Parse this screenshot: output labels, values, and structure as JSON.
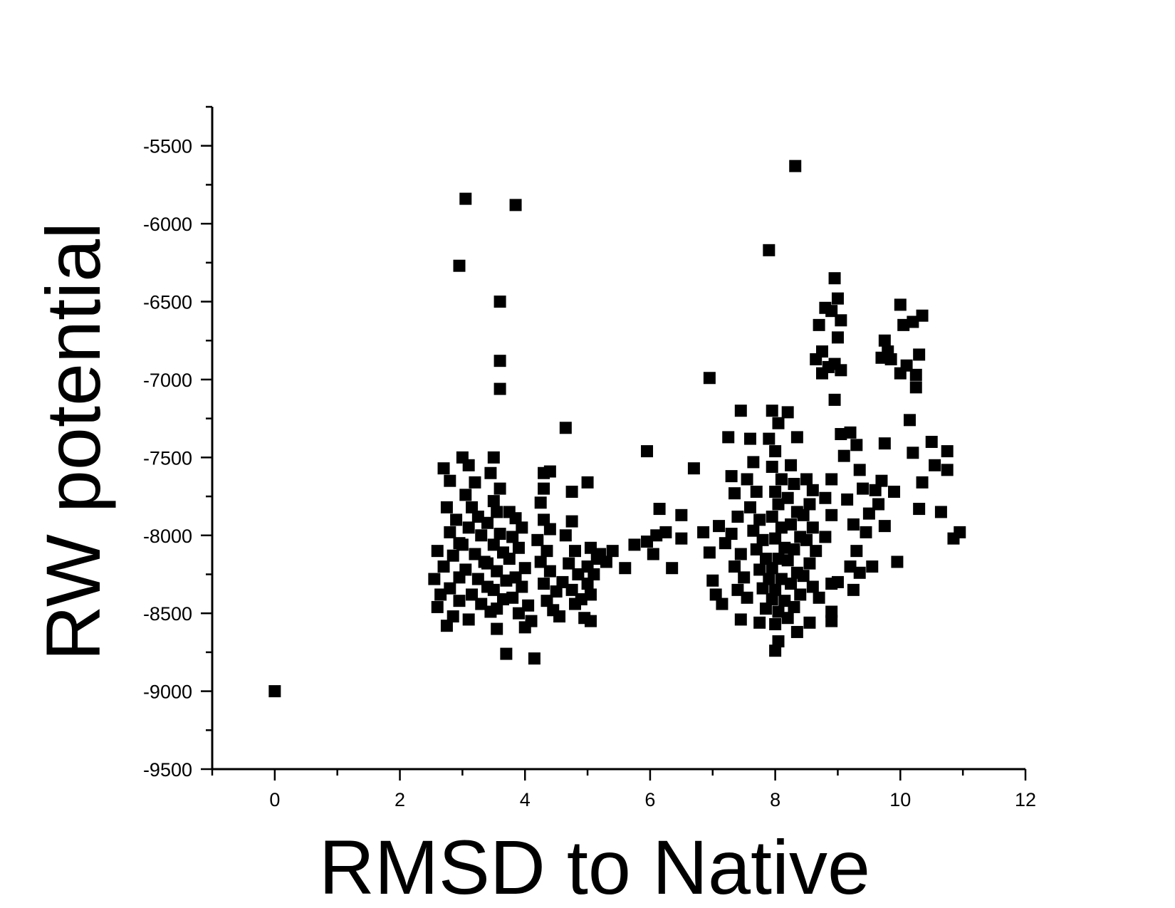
{
  "chart_data": {
    "type": "scatter",
    "xlabel": "RMSD to Native",
    "ylabel": "RW potential",
    "xlim": [
      -1,
      12
    ],
    "ylim": [
      -9500,
      -5250
    ],
    "x_ticks": [
      0,
      2,
      4,
      6,
      8,
      10,
      12
    ],
    "y_ticks": [
      -9500,
      -9000,
      -8500,
      -8000,
      -7500,
      -7000,
      -6500,
      -6000,
      -5500
    ],
    "x_tick_labels": [
      "0",
      "2",
      "4",
      "6",
      "8",
      "10",
      "12"
    ],
    "y_tick_labels": [
      "-9500",
      "-9000",
      "-8500",
      "-8000",
      "-7500",
      "-7000",
      "-6500",
      "-6000",
      "-5500"
    ],
    "grid": false,
    "legend": "none",
    "marker": "square",
    "marker_color": "#000000",
    "series": [
      {
        "points": [
          [
            0.0,
            -9000
          ],
          [
            3.05,
            -5840
          ],
          [
            3.85,
            -5880
          ],
          [
            2.95,
            -6270
          ],
          [
            3.6,
            -6500
          ],
          [
            3.6,
            -6880
          ],
          [
            3.6,
            -7060
          ],
          [
            8.32,
            -5630
          ],
          [
            7.9,
            -6170
          ],
          [
            6.95,
            -6990
          ],
          [
            4.65,
            -7310
          ],
          [
            5.95,
            -7460
          ],
          [
            6.7,
            -7570
          ],
          [
            2.6,
            -8100
          ],
          [
            2.55,
            -8280
          ],
          [
            2.65,
            -8380
          ],
          [
            2.6,
            -8460
          ],
          [
            2.75,
            -8580
          ],
          [
            2.85,
            -8520
          ],
          [
            2.7,
            -7570
          ],
          [
            2.8,
            -7650
          ],
          [
            2.75,
            -7820
          ],
          [
            2.9,
            -7900
          ],
          [
            2.8,
            -7980
          ],
          [
            2.95,
            -8050
          ],
          [
            2.85,
            -8130
          ],
          [
            2.7,
            -8200
          ],
          [
            2.95,
            -8270
          ],
          [
            2.8,
            -8340
          ],
          [
            2.95,
            -8420
          ],
          [
            3.0,
            -7500
          ],
          [
            3.1,
            -7550
          ],
          [
            3.2,
            -7660
          ],
          [
            3.05,
            -7740
          ],
          [
            3.15,
            -7820
          ],
          [
            3.25,
            -7880
          ],
          [
            3.1,
            -7950
          ],
          [
            3.3,
            -8000
          ],
          [
            3.0,
            -8060
          ],
          [
            3.2,
            -8120
          ],
          [
            3.35,
            -8170
          ],
          [
            3.05,
            -8220
          ],
          [
            3.25,
            -8280
          ],
          [
            3.4,
            -8330
          ],
          [
            3.15,
            -8380
          ],
          [
            3.3,
            -8440
          ],
          [
            3.45,
            -8490
          ],
          [
            3.1,
            -8540
          ],
          [
            3.5,
            -7500
          ],
          [
            3.45,
            -7600
          ],
          [
            3.6,
            -7700
          ],
          [
            3.5,
            -7780
          ],
          [
            3.55,
            -7850
          ],
          [
            3.4,
            -7920
          ],
          [
            3.6,
            -7990
          ],
          [
            3.5,
            -8060
          ],
          [
            3.65,
            -8110
          ],
          [
            3.4,
            -8180
          ],
          [
            3.55,
            -8230
          ],
          [
            3.7,
            -8290
          ],
          [
            3.5,
            -8350
          ],
          [
            3.65,
            -8410
          ],
          [
            3.55,
            -8470
          ],
          [
            3.55,
            -8600
          ],
          [
            3.7,
            -8760
          ],
          [
            3.75,
            -7850
          ],
          [
            3.85,
            -7890
          ],
          [
            3.95,
            -7950
          ],
          [
            3.8,
            -8010
          ],
          [
            3.9,
            -8080
          ],
          [
            3.75,
            -8150
          ],
          [
            4.0,
            -8210
          ],
          [
            3.85,
            -8270
          ],
          [
            3.95,
            -8330
          ],
          [
            3.8,
            -8400
          ],
          [
            4.05,
            -8450
          ],
          [
            3.9,
            -8500
          ],
          [
            4.0,
            -8590
          ],
          [
            4.15,
            -8790
          ],
          [
            4.1,
            -8550
          ],
          [
            4.3,
            -7600
          ],
          [
            4.4,
            -7590
          ],
          [
            4.3,
            -7700
          ],
          [
            4.25,
            -7790
          ],
          [
            4.3,
            -7900
          ],
          [
            4.4,
            -7960
          ],
          [
            4.2,
            -8030
          ],
          [
            4.35,
            -8100
          ],
          [
            4.25,
            -8170
          ],
          [
            4.4,
            -8230
          ],
          [
            4.3,
            -8310
          ],
          [
            4.5,
            -8360
          ],
          [
            4.35,
            -8420
          ],
          [
            4.45,
            -8480
          ],
          [
            4.55,
            -8520
          ],
          [
            4.75,
            -7720
          ],
          [
            4.75,
            -7910
          ],
          [
            4.65,
            -8000
          ],
          [
            4.8,
            -8100
          ],
          [
            4.7,
            -8180
          ],
          [
            4.85,
            -8250
          ],
          [
            4.6,
            -8300
          ],
          [
            4.75,
            -8350
          ],
          [
            4.9,
            -8410
          ],
          [
            4.8,
            -8440
          ],
          [
            4.95,
            -8530
          ],
          [
            5.05,
            -8550
          ],
          [
            5.0,
            -7660
          ],
          [
            5.05,
            -8080
          ],
          [
            5.15,
            -8150
          ],
          [
            5.0,
            -8200
          ],
          [
            5.2,
            -8120
          ],
          [
            5.3,
            -8170
          ],
          [
            5.1,
            -8250
          ],
          [
            5.0,
            -8310
          ],
          [
            5.05,
            -8380
          ],
          [
            5.4,
            -8100
          ],
          [
            5.6,
            -8210
          ],
          [
            5.75,
            -8060
          ],
          [
            5.95,
            -8040
          ],
          [
            6.05,
            -8120
          ],
          [
            6.15,
            -7830
          ],
          [
            6.25,
            -7980
          ],
          [
            6.35,
            -8210
          ],
          [
            6.5,
            -7870
          ],
          [
            6.5,
            -8020
          ],
          [
            6.1,
            -8000
          ],
          [
            6.85,
            -7980
          ],
          [
            6.95,
            -8110
          ],
          [
            7.0,
            -8290
          ],
          [
            7.05,
            -8380
          ],
          [
            7.1,
            -7940
          ],
          [
            7.2,
            -8050
          ],
          [
            7.15,
            -8440
          ],
          [
            7.25,
            -7370
          ],
          [
            7.3,
            -7620
          ],
          [
            7.35,
            -7730
          ],
          [
            7.4,
            -7880
          ],
          [
            7.3,
            -7990
          ],
          [
            7.45,
            -8120
          ],
          [
            7.35,
            -8200
          ],
          [
            7.5,
            -8270
          ],
          [
            7.4,
            -8350
          ],
          [
            7.55,
            -8400
          ],
          [
            7.45,
            -8540
          ],
          [
            7.45,
            -7200
          ],
          [
            7.6,
            -7380
          ],
          [
            7.65,
            -7530
          ],
          [
            7.55,
            -7640
          ],
          [
            7.7,
            -7720
          ],
          [
            7.6,
            -7820
          ],
          [
            7.75,
            -7900
          ],
          [
            7.65,
            -7970
          ],
          [
            7.8,
            -8030
          ],
          [
            7.7,
            -8090
          ],
          [
            7.85,
            -8150
          ],
          [
            7.75,
            -8220
          ],
          [
            7.9,
            -8280
          ],
          [
            7.8,
            -8340
          ],
          [
            7.95,
            -8410
          ],
          [
            7.85,
            -8470
          ],
          [
            7.75,
            -8560
          ],
          [
            7.95,
            -7200
          ],
          [
            8.05,
            -7280
          ],
          [
            7.9,
            -7380
          ],
          [
            8.0,
            -7460
          ],
          [
            7.95,
            -7560
          ],
          [
            8.1,
            -7640
          ],
          [
            8.0,
            -7720
          ],
          [
            8.05,
            -7800
          ],
          [
            7.95,
            -7880
          ],
          [
            8.1,
            -7950
          ],
          [
            8.0,
            -8020
          ],
          [
            8.15,
            -8080
          ],
          [
            8.05,
            -8150
          ],
          [
            7.95,
            -8210
          ],
          [
            8.1,
            -8280
          ],
          [
            8.0,
            -8350
          ],
          [
            8.15,
            -8420
          ],
          [
            8.05,
            -8490
          ],
          [
            8.0,
            -8570
          ],
          [
            8.05,
            -8680
          ],
          [
            8.0,
            -8740
          ],
          [
            8.2,
            -7210
          ],
          [
            8.35,
            -7370
          ],
          [
            8.25,
            -7550
          ],
          [
            8.3,
            -7670
          ],
          [
            8.2,
            -7760
          ],
          [
            8.35,
            -7850
          ],
          [
            8.25,
            -7930
          ],
          [
            8.4,
            -8010
          ],
          [
            8.3,
            -8090
          ],
          [
            8.2,
            -8160
          ],
          [
            8.35,
            -8240
          ],
          [
            8.25,
            -8310
          ],
          [
            8.4,
            -8380
          ],
          [
            8.3,
            -8460
          ],
          [
            8.2,
            -8530
          ],
          [
            8.35,
            -8620
          ],
          [
            8.5,
            -7640
          ],
          [
            8.6,
            -7710
          ],
          [
            8.55,
            -7800
          ],
          [
            8.45,
            -7870
          ],
          [
            8.6,
            -7950
          ],
          [
            8.5,
            -8030
          ],
          [
            8.65,
            -8100
          ],
          [
            8.55,
            -8180
          ],
          [
            8.45,
            -8260
          ],
          [
            8.6,
            -8330
          ],
          [
            8.7,
            -8400
          ],
          [
            8.55,
            -8560
          ],
          [
            8.65,
            -6870
          ],
          [
            8.75,
            -6960
          ],
          [
            8.7,
            -6650
          ],
          [
            8.8,
            -6540
          ],
          [
            8.75,
            -6820
          ],
          [
            8.85,
            -6920
          ],
          [
            8.95,
            -6350
          ],
          [
            9.0,
            -6480
          ],
          [
            8.9,
            -6560
          ],
          [
            9.05,
            -6620
          ],
          [
            9.0,
            -6730
          ],
          [
            8.95,
            -6900
          ],
          [
            9.05,
            -6940
          ],
          [
            8.95,
            -7130
          ],
          [
            9.05,
            -7350
          ],
          [
            9.1,
            -7490
          ],
          [
            8.9,
            -7640
          ],
          [
            8.8,
            -7760
          ],
          [
            8.9,
            -7870
          ],
          [
            8.8,
            -8010
          ],
          [
            8.9,
            -8310
          ],
          [
            9.0,
            -8300
          ],
          [
            8.9,
            -8490
          ],
          [
            8.9,
            -8550
          ],
          [
            9.2,
            -7340
          ],
          [
            9.3,
            -7420
          ],
          [
            9.35,
            -7580
          ],
          [
            9.15,
            -7770
          ],
          [
            9.25,
            -7930
          ],
          [
            9.3,
            -8100
          ],
          [
            9.2,
            -8200
          ],
          [
            9.35,
            -8240
          ],
          [
            9.25,
            -8350
          ],
          [
            9.4,
            -7700
          ],
          [
            9.5,
            -7860
          ],
          [
            9.45,
            -7980
          ],
          [
            9.55,
            -8200
          ],
          [
            9.6,
            -7710
          ],
          [
            9.7,
            -7650
          ],
          [
            9.65,
            -7800
          ],
          [
            9.75,
            -7940
          ],
          [
            9.75,
            -6750
          ],
          [
            9.7,
            -6860
          ],
          [
            9.8,
            -6820
          ],
          [
            9.85,
            -6870
          ],
          [
            9.9,
            -7720
          ],
          [
            9.95,
            -8170
          ],
          [
            9.75,
            -7410
          ],
          [
            10.0,
            -6520
          ],
          [
            10.05,
            -6650
          ],
          [
            10.0,
            -6960
          ],
          [
            10.1,
            -6910
          ],
          [
            10.15,
            -7260
          ],
          [
            10.2,
            -6630
          ],
          [
            10.25,
            -6970
          ],
          [
            10.3,
            -6840
          ],
          [
            10.35,
            -6590
          ],
          [
            10.25,
            -7050
          ],
          [
            10.2,
            -7470
          ],
          [
            10.3,
            -7830
          ],
          [
            10.35,
            -7660
          ],
          [
            10.5,
            -7400
          ],
          [
            10.55,
            -7550
          ],
          [
            10.65,
            -7850
          ],
          [
            10.75,
            -7460
          ],
          [
            10.75,
            -7580
          ],
          [
            10.85,
            -8020
          ],
          [
            10.95,
            -7980
          ]
        ]
      }
    ]
  }
}
